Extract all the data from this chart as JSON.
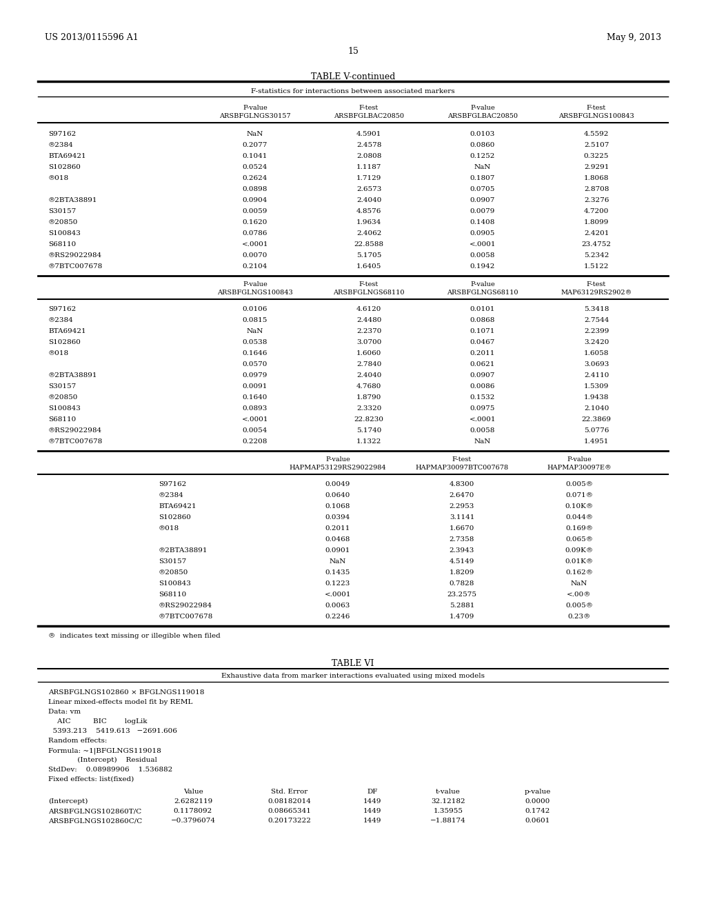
{
  "header_left": "US 2013/0115596 A1",
  "header_right": "May 9, 2013",
  "page_number": "15",
  "table_v_title": "TABLE V-continued",
  "table_v_subtitle": "F-statistics for interactions between associated markers",
  "section1_rows": [
    [
      "S97162",
      "NaN",
      "4.5901",
      "0.0103",
      "4.5592"
    ],
    [
      "®2384",
      "0.2077",
      "2.4578",
      "0.0860",
      "2.5107"
    ],
    [
      "BTA69421",
      "0.1041",
      "2.0808",
      "0.1252",
      "0.3225"
    ],
    [
      "S102860",
      "0.0524",
      "1.1187",
      "NaN",
      "2.9291"
    ],
    [
      "®018",
      "0.2624",
      "1.7129",
      "0.1807",
      "1.8068"
    ],
    [
      "",
      "0.0898",
      "2.6573",
      "0.0705",
      "2.8708"
    ],
    [
      "®2BTA38891",
      "0.0904",
      "2.4040",
      "0.0907",
      "2.3276"
    ],
    [
      "S30157",
      "0.0059",
      "4.8576",
      "0.0079",
      "4.7200"
    ],
    [
      "®20850",
      "0.1620",
      "1.9634",
      "0.1408",
      "1.8099"
    ],
    [
      "S100843",
      "0.0786",
      "2.4062",
      "0.0905",
      "2.4201"
    ],
    [
      "S68110",
      "<.0001",
      "22.8588",
      "<.0001",
      "23.4752"
    ],
    [
      "®RS29022984",
      "0.0070",
      "5.1705",
      "0.0058",
      "5.2342"
    ],
    [
      "®7BTC007678",
      "0.2104",
      "1.6405",
      "0.1942",
      "1.5122"
    ]
  ],
  "section1_col_heads": [
    [
      "P-value",
      "ARSBFGLNGS30157"
    ],
    [
      "F-test",
      "ARSBFGLBAC20850"
    ],
    [
      "P-value",
      "ARSBFGLBAC20850"
    ],
    [
      "F-test",
      "ARSBFGLNGS100843"
    ]
  ],
  "section2_col_heads": [
    [
      "P-value",
      "ARSBFGLNGS100843"
    ],
    [
      "F-test",
      "ARSBFGLNGS68110"
    ],
    [
      "P-value",
      "ARSBFGLNGS68110"
    ],
    [
      "F-test",
      "MAP63129RS2902®"
    ]
  ],
  "section2_rows": [
    [
      "S97162",
      "0.0106",
      "4.6120",
      "0.0101",
      "5.3418"
    ],
    [
      "®2384",
      "0.0815",
      "2.4480",
      "0.0868",
      "2.7544"
    ],
    [
      "BTA69421",
      "NaN",
      "2.2370",
      "0.1071",
      "2.2399"
    ],
    [
      "S102860",
      "0.0538",
      "3.0700",
      "0.0467",
      "3.2420"
    ],
    [
      "®018",
      "0.1646",
      "1.6060",
      "0.2011",
      "1.6058"
    ],
    [
      "",
      "0.0570",
      "2.7840",
      "0.0621",
      "3.0693"
    ],
    [
      "®2BTA38891",
      "0.0979",
      "2.4040",
      "0.0907",
      "2.4110"
    ],
    [
      "S30157",
      "0.0091",
      "4.7680",
      "0.0086",
      "1.5309"
    ],
    [
      "®20850",
      "0.1640",
      "1.8790",
      "0.1532",
      "1.9438"
    ],
    [
      "S100843",
      "0.0893",
      "2.3320",
      "0.0975",
      "2.1040"
    ],
    [
      "S68110",
      "<.0001",
      "22.8230",
      "<.0001",
      "22.3869"
    ],
    [
      "®RS29022984",
      "0.0054",
      "5.1740",
      "0.0058",
      "5.0776"
    ],
    [
      "®7BTC007678",
      "0.2208",
      "1.1322",
      "NaN",
      "1.4951"
    ]
  ],
  "section3_col_heads": [
    [
      "P-value",
      "HAPMAP53129RS29022984"
    ],
    [
      "F-test",
      "HAPMAP30097BTC007678"
    ],
    [
      "P-value",
      "HAPMAP30097E®"
    ]
  ],
  "section3_rows": [
    [
      "S97162",
      "0.0049",
      "4.8300",
      "0.005®"
    ],
    [
      "®2384",
      "0.0640",
      "2.6470",
      "0.071®"
    ],
    [
      "BTA69421",
      "0.1068",
      "2.2953",
      "0.10K®"
    ],
    [
      "S102860",
      "0.0394",
      "3.1141",
      "0.044®"
    ],
    [
      "®018",
      "0.2011",
      "1.6670",
      "0.169®"
    ],
    [
      "",
      "0.0468",
      "2.7358",
      "0.065®"
    ],
    [
      "®2BTA38891",
      "0.0901",
      "2.3943",
      "0.09K®"
    ],
    [
      "S30157",
      "NaN",
      "4.5149",
      "0.01K®"
    ],
    [
      "®20850",
      "0.1435",
      "1.8209",
      "0.162®"
    ],
    [
      "S100843",
      "0.1223",
      "0.7828",
      "NaN"
    ],
    [
      "S68110",
      "<.0001",
      "23.2575",
      "<.00®"
    ],
    [
      "®RS29022984",
      "0.0063",
      "5.2881",
      "0.005®"
    ],
    [
      "®7BTC007678",
      "0.2246",
      "1.4709",
      "0.23®"
    ]
  ],
  "footnote": "®  indicates text missing or illegible when filed",
  "table_vi_title": "TABLE VI",
  "table_vi_subtitle": "Exhaustive data from marker interactions evaluated using mixed models",
  "table_vi_content": [
    "ARSBFGLNGS102860 × BFGLNGS119018",
    "Linear mixed-effects model fit by REML",
    "Data: vm",
    "    AIC          BIC        logLik",
    "  5393.213    5419.613   −2691.606",
    "Random effects:",
    "Formula: ~1|BFGLNGS119018",
    "             (Intercept)    Residual",
    "StdDev:    0.08989906    1.536882",
    "Fixed effects: list(fixed)"
  ],
  "table_vi_fixed_header": [
    "",
    "Value",
    "Std. Error",
    "DF",
    "t-value",
    "p-value"
  ],
  "table_vi_fixed_rows": [
    [
      "(Intercept)",
      "2.6282119",
      "0.08182014",
      "1449",
      "32.12182",
      "0.0000"
    ],
    [
      "ARSBFGLNGS102860T/C",
      "0.1178092",
      "0.08665341",
      "1449",
      "1.35955",
      "0.1742"
    ],
    [
      "ARSBFGLNGS102860C/C",
      "−0.3796074",
      "0.20173222",
      "1449",
      "−1.88174",
      "0.0601"
    ]
  ],
  "bg_color": "#ffffff"
}
